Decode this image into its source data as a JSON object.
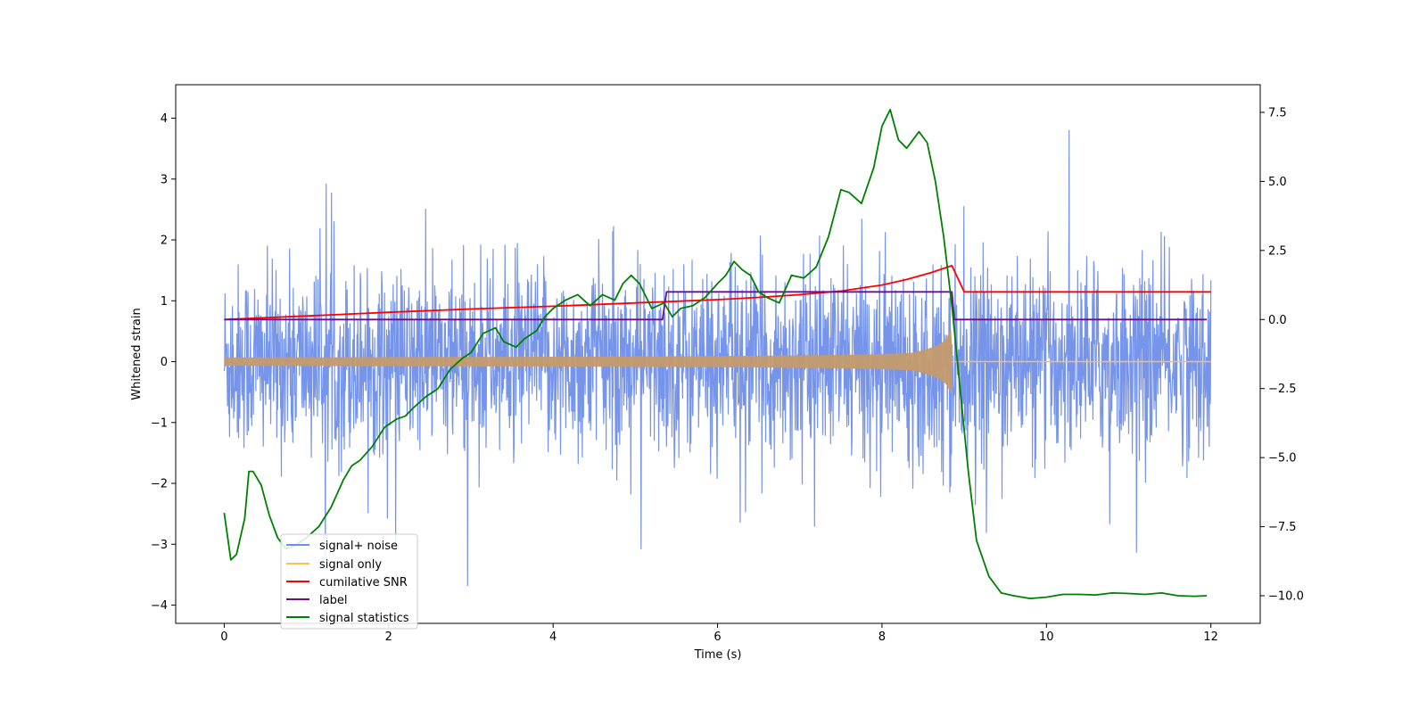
{
  "chart_data": {
    "type": "line",
    "title": "",
    "xlabel": "Time (s)",
    "ylabel_left": "Whitened strain",
    "ylabel_right": "",
    "xlim": [
      -0.59,
      12.6
    ],
    "ylim_left": [
      -4.3,
      4.55
    ],
    "ylim_right": [
      -11.0,
      8.5
    ],
    "x_ticks": [
      0,
      2,
      4,
      6,
      8,
      10,
      12
    ],
    "x_tick_labels": [
      "0",
      "2",
      "4",
      "6",
      "8",
      "10",
      "12"
    ],
    "y_ticks_left": [
      -4,
      -3,
      -2,
      -1,
      0,
      1,
      2,
      3,
      4
    ],
    "y_tick_labels_left": [
      "−4",
      "−3",
      "−2",
      "−1",
      "0",
      "1",
      "2",
      "3",
      "4"
    ],
    "y_ticks_right": [
      -10,
      -7.5,
      -5,
      -2.5,
      0,
      2.5,
      5,
      7.5
    ],
    "y_tick_labels_right": [
      "−10.0",
      "−7.5",
      "−5.0",
      "−2.5",
      "0.0",
      "2.5",
      "5.0",
      "7.5"
    ],
    "grid": false,
    "legend_position": "lower-left",
    "series": [
      {
        "name": "signal+ noise",
        "axis": "left",
        "color": "#6f8ee8",
        "style": "dense noise, roughly ±2 band with peaks to ±4; strain envelope grows toward merger at t≈8.85 s",
        "noise_amplitude": 0.75,
        "t_start": 0,
        "t_end": 12
      },
      {
        "name": "signal only",
        "axis": "left",
        "color": "#ffc04d",
        "style": "chirp oscillation, amplitude grows from ~0.07 to ~1.0 until t=8.85 then zero",
        "t_start": 0,
        "t_merge": 8.85,
        "t_end": 12
      },
      {
        "name": "cumilative SNR",
        "axis": "right",
        "color": "#ff0000",
        "x": [
          0,
          1,
          2,
          3,
          4,
          5,
          6,
          6.5,
          7,
          7.5,
          8,
          8.3,
          8.6,
          8.85,
          9,
          10,
          11,
          12
        ],
        "values": [
          0.0,
          0.13,
          0.26,
          0.38,
          0.48,
          0.6,
          0.72,
          0.8,
          0.9,
          1.03,
          1.25,
          1.45,
          1.7,
          1.95,
          1.0,
          1.0,
          1.0,
          1.0
        ]
      },
      {
        "name": "label",
        "axis": "right",
        "color": "#6a0d91",
        "x": [
          0,
          5.33,
          5.38,
          8.85,
          8.88,
          11.95
        ],
        "values": [
          0,
          0,
          1,
          1,
          0,
          0
        ]
      },
      {
        "name": "signal statistics",
        "axis": "right",
        "color": "#008000",
        "x": [
          0,
          0.08,
          0.15,
          0.25,
          0.3,
          0.35,
          0.45,
          0.55,
          0.65,
          0.75,
          0.85,
          1.0,
          1.15,
          1.3,
          1.45,
          1.55,
          1.65,
          1.8,
          1.95,
          2.1,
          2.2,
          2.3,
          2.45,
          2.6,
          2.75,
          2.9,
          3.0,
          3.15,
          3.3,
          3.4,
          3.55,
          3.65,
          3.8,
          3.9,
          4.0,
          4.15,
          4.3,
          4.45,
          4.6,
          4.75,
          4.85,
          4.95,
          5.05,
          5.2,
          5.35,
          5.45,
          5.55,
          5.7,
          5.85,
          6.0,
          6.1,
          6.2,
          6.3,
          6.4,
          6.5,
          6.6,
          6.75,
          6.9,
          7.05,
          7.2,
          7.35,
          7.5,
          7.6,
          7.75,
          7.9,
          8.0,
          8.1,
          8.2,
          8.3,
          8.45,
          8.55,
          8.65,
          8.75,
          8.85,
          8.95,
          9.05,
          9.15,
          9.3,
          9.45,
          9.6,
          9.8,
          10.0,
          10.2,
          10.4,
          10.6,
          10.8,
          11.0,
          11.2,
          11.4,
          11.6,
          11.8,
          11.95
        ],
        "values": [
          -7.0,
          -8.7,
          -8.5,
          -7.2,
          -5.5,
          -5.5,
          -6.0,
          -7.1,
          -7.9,
          -8.3,
          -8.2,
          -7.9,
          -7.5,
          -6.8,
          -5.8,
          -5.3,
          -5.1,
          -4.6,
          -3.9,
          -3.6,
          -3.5,
          -3.2,
          -2.8,
          -2.5,
          -1.8,
          -1.4,
          -1.2,
          -0.5,
          -0.3,
          -0.8,
          -1.0,
          -0.7,
          -0.4,
          0.1,
          0.4,
          0.7,
          0.9,
          0.5,
          0.9,
          0.7,
          1.3,
          1.6,
          1.3,
          0.4,
          0.6,
          0.1,
          0.4,
          0.5,
          0.8,
          1.3,
          1.6,
          2.1,
          1.8,
          1.6,
          1.0,
          0.8,
          0.6,
          1.6,
          1.5,
          1.9,
          3.0,
          4.7,
          4.6,
          4.2,
          5.5,
          7.0,
          7.6,
          6.5,
          6.2,
          6.8,
          6.4,
          5.0,
          3.0,
          0.5,
          -2.5,
          -5.5,
          -8.0,
          -9.3,
          -9.9,
          -10.0,
          -10.1,
          -10.05,
          -9.95,
          -9.95,
          -9.97,
          -9.9,
          -9.92,
          -9.95,
          -9.9,
          -10.0,
          -10.02,
          -10.0
        ]
      }
    ]
  }
}
